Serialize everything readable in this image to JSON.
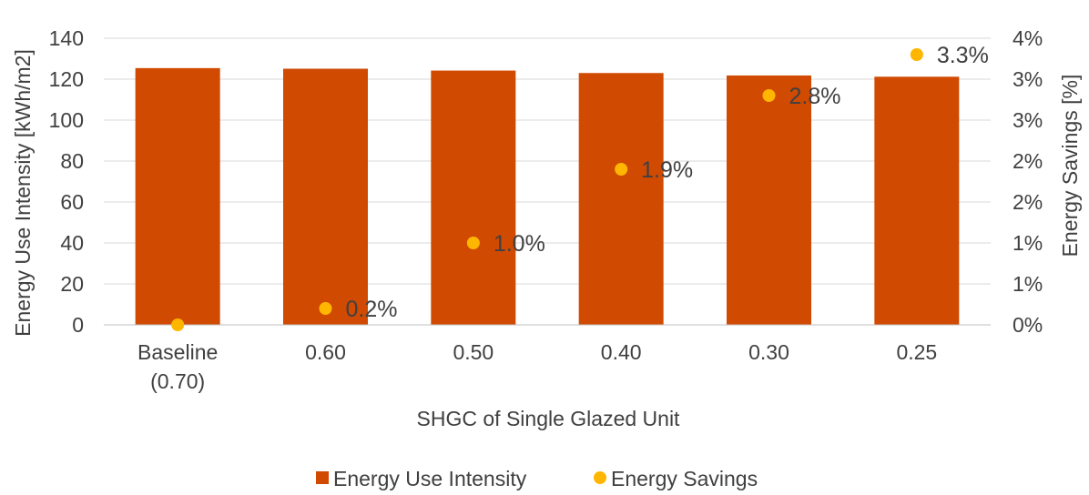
{
  "chart_data": {
    "type": "bar",
    "categories": [
      [
        "Baseline",
        "(0.70)"
      ],
      [
        "0.60"
      ],
      [
        "0.50"
      ],
      [
        "0.40"
      ],
      [
        "0.30"
      ],
      [
        "0.25"
      ]
    ],
    "series": [
      {
        "name": "Energy Use Intensity",
        "type": "bar",
        "axis": "left",
        "color": "#D04A02",
        "values": [
          125.4,
          125.1,
          124.2,
          123.0,
          121.8,
          121.2
        ]
      },
      {
        "name": "Energy Savings",
        "type": "scatter",
        "axis": "right",
        "color": "#FFB600",
        "values": [
          0.0,
          0.2,
          1.0,
          1.9,
          2.8,
          3.3
        ],
        "data_labels": [
          "",
          "0.2%",
          "1.0%",
          "1.9%",
          "2.8%",
          "3.3%"
        ]
      }
    ],
    "xlabel": "SHGC of Single Glazed Unit",
    "ylabel": "Energy Use Intensity [kWh/m2]",
    "y2label": "Energy Savings [%]",
    "ylim": [
      0,
      140
    ],
    "y2lim": [
      0,
      3.5
    ],
    "yticks": [
      "0",
      "20",
      "40",
      "60",
      "80",
      "100",
      "120",
      "140"
    ],
    "y2ticks": [
      "0%",
      "1%",
      "1%",
      "2%",
      "2%",
      "3%",
      "3%",
      "4%"
    ],
    "grid": true,
    "legend_position": "bottom"
  }
}
